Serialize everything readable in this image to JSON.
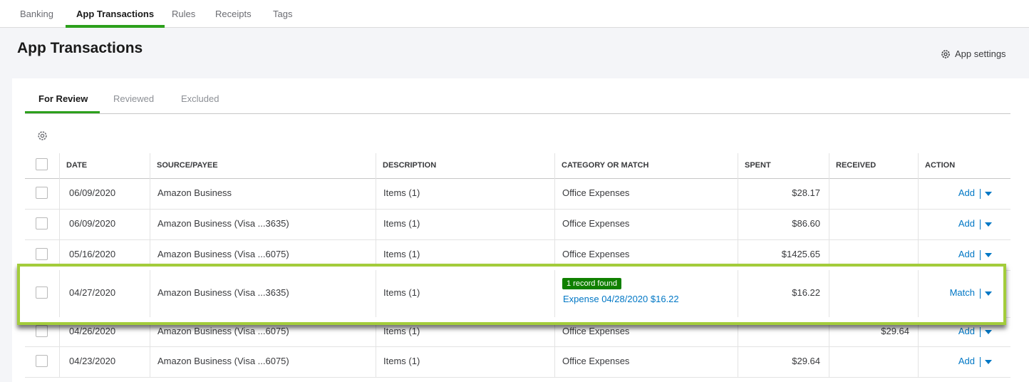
{
  "nav_tabs": [
    {
      "label": "Banking"
    },
    {
      "label": "App Transactions",
      "active": true
    },
    {
      "label": "Rules"
    },
    {
      "label": "Receipts"
    },
    {
      "label": "Tags"
    }
  ],
  "page_title": "App Transactions",
  "settings_link": "App settings",
  "review_tabs": [
    {
      "label": "For Review",
      "active": true
    },
    {
      "label": "Reviewed"
    },
    {
      "label": "Excluded"
    }
  ],
  "table": {
    "columns": [
      "DATE",
      "SOURCE/PAYEE",
      "DESCRIPTION",
      "CATEGORY OR MATCH",
      "SPENT",
      "RECEIVED",
      "ACTION"
    ],
    "rows": [
      {
        "date": "06/09/2020",
        "source": "Amazon Business",
        "description": "Items (1)",
        "category": "Office Expenses",
        "spent": "$28.17",
        "received": null,
        "action": "Add"
      },
      {
        "date": "06/09/2020",
        "source": "Amazon Business (Visa ...3635)",
        "description": "Items (1)",
        "category": "Office Expenses",
        "spent": "$86.60",
        "received": null,
        "action": "Add"
      },
      {
        "date": "05/16/2020",
        "source": "Amazon Business (Visa ...6075)",
        "description": "Items (1)",
        "category": "Office Expenses",
        "spent": "$1425.65",
        "received": null,
        "action": "Add"
      },
      {
        "date": "04/27/2020",
        "source": "Amazon Business (Visa ...3635)",
        "description": "Items (1)",
        "badge": "1 record found",
        "category": "Expense 04/28/2020 $16.22",
        "spent": "$16.22",
        "received": null,
        "action": "Match",
        "highlighted": true
      },
      {
        "date": "04/26/2020",
        "source": "Amazon Business (Visa ...6075)",
        "description": "Items (1)",
        "category": "Office Expenses",
        "spent": null,
        "received": "$29.64",
        "action": "Add"
      },
      {
        "date": "04/23/2020",
        "source": "Amazon Business (Visa ...6075)",
        "description": "Items (1)",
        "category": "Office Expenses",
        "spent": "$29.64",
        "received": null,
        "action": "Add"
      }
    ]
  }
}
